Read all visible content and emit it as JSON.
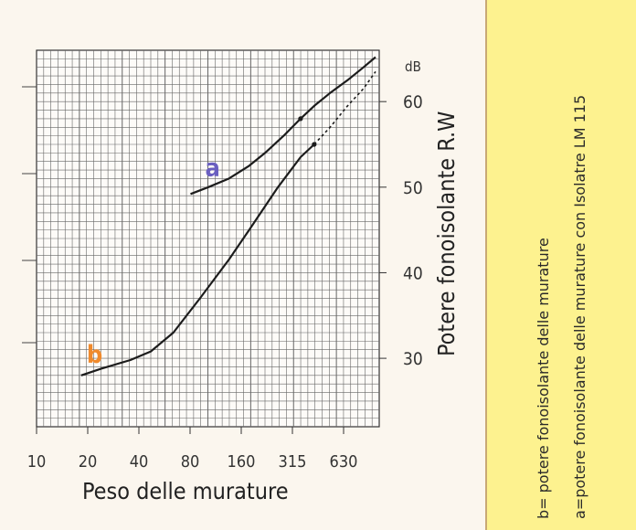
{
  "chart_data": {
    "type": "line",
    "xlabel": "Peso delle murature",
    "ylabel": "Potere fonoisolante R.W",
    "yunit": "dB",
    "x_tick_labels": [
      "10",
      "20",
      "40",
      "80",
      "160",
      "315",
      "630"
    ],
    "y_tick_labels": [
      "30",
      "40",
      "50",
      "60"
    ],
    "xscale": "log",
    "xlim": [
      8,
      1000
    ],
    "ylim": [
      22,
      66
    ],
    "grid": true,
    "series": [
      {
        "name": "a",
        "color": "#6a5fc0",
        "x": [
          70,
          90,
          120,
          160,
          200,
          260,
          330,
          400,
          500,
          640,
          800,
          950
        ],
        "y": [
          49.2,
          50.0,
          51.0,
          52.5,
          54.0,
          56.0,
          58.0,
          59.5,
          61.0,
          62.5,
          64.0,
          65.2
        ]
      },
      {
        "name": "b",
        "color": "#f08a2c",
        "x": [
          15,
          20,
          30,
          40,
          55,
          80,
          120,
          160,
          240,
          330,
          400
        ],
        "y": [
          28.0,
          28.8,
          29.8,
          30.8,
          33.0,
          37.0,
          41.5,
          45.0,
          50.0,
          53.5,
          55.0
        ],
        "extension": {
          "x": [
            400,
            500,
            640,
            800,
            950
          ],
          "y": [
            55.0,
            57.0,
            59.5,
            61.5,
            63.5
          ]
        }
      }
    ]
  },
  "panel": {
    "line_b": "b= potere fonoisolante delle murature",
    "line_a": "a=potere fonoisolante delle murature con Isolatre LM 115"
  }
}
